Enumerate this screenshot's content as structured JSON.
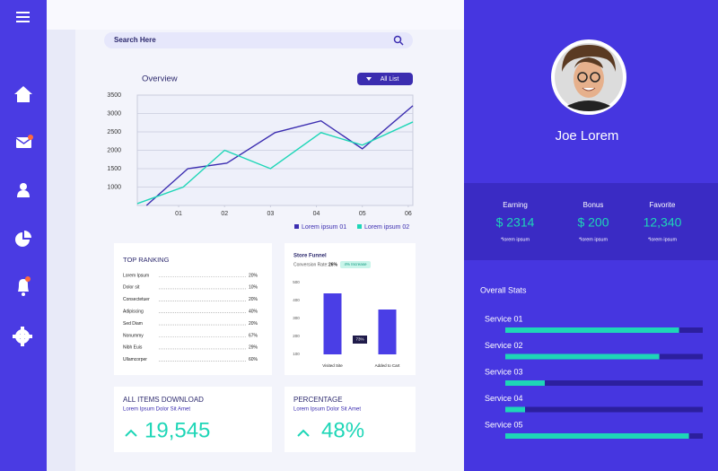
{
  "search": {
    "placeholder": "Search Here"
  },
  "overview": {
    "type": "line",
    "title": "Overview",
    "filter": "All List",
    "xlim": [
      0.1,
      6.1
    ],
    "xticks": [
      {
        "value": 1,
        "label": "01"
      },
      {
        "value": 2,
        "label": "02"
      },
      {
        "value": 3,
        "label": "03"
      },
      {
        "value": 4,
        "label": "04"
      },
      {
        "value": 5,
        "label": "05"
      },
      {
        "value": 6,
        "label": "06"
      }
    ],
    "ylim": [
      500,
      3500
    ],
    "yticks": [
      1000,
      1500,
      2000,
      2500,
      3000,
      3500
    ],
    "grid": true,
    "series": [
      {
        "name": "Lorem ipsum 01",
        "color": "#3b2db0",
        "x": [
          0.3,
          1.2,
          2.05,
          3.1,
          4.1,
          5.0,
          6.1
        ],
        "values": [
          500,
          1500,
          1650,
          2480,
          2800,
          2040,
          3210
        ]
      },
      {
        "name": "Lorem ipsum 02",
        "color": "#1ed6b7",
        "x": [
          0.1,
          1.1,
          2.0,
          3.0,
          4.1,
          5.0,
          6.1
        ],
        "values": [
          550,
          1000,
          2000,
          1500,
          2480,
          2140,
          2770
        ]
      }
    ]
  },
  "top_ranking": {
    "title": "TOP RANKING",
    "rows": [
      [
        "Lorem Ipsum",
        "20%"
      ],
      [
        "Dolor sit",
        "10%"
      ],
      [
        "Consectetuer",
        "20%"
      ],
      [
        "Adipiscing",
        "40%"
      ],
      [
        "Sed Diam",
        "20%"
      ],
      [
        "Nonummy",
        "67%"
      ],
      [
        "Nibh Euis",
        "29%"
      ],
      [
        "Ullamcorper",
        "60%"
      ]
    ]
  },
  "store_funnel": {
    "type": "bar",
    "title": "Store Funnel",
    "conversion_label": "Conversion Rate:",
    "conversion_rate": "26%",
    "increase": "4% Increase",
    "categories": [
      "Visited Site",
      "Added to Cart"
    ],
    "values": [
      440,
      350
    ],
    "color": "#4a3ee6",
    "ylim": [
      100,
      500
    ],
    "yticks": [
      100,
      200,
      300,
      400,
      500
    ],
    "annotation": "73%"
  },
  "downloads": {
    "title": "ALL ITEMS DOWNLOAD",
    "subtitle": "Lorem Ipsum Dolor Sit Amet",
    "value": "19,545"
  },
  "percentage": {
    "title": "PERCENTAGE",
    "subtitle": "Lorem Ipsum Dolor Sit Amet",
    "value": "48%"
  },
  "profile": {
    "name": "Joe Lorem"
  },
  "stats": [
    {
      "label": "Earning",
      "value": "$ 2314",
      "note": "*lorem ipsum"
    },
    {
      "label": "Bonus",
      "value": "$ 200",
      "note": "*lorem ipsum"
    },
    {
      "label": "Favorite",
      "value": "12,340",
      "note": "*lorem ipsum"
    }
  ],
  "overall_stats": {
    "type": "bar",
    "title": "Overall Stats",
    "categories": [
      "Service 01",
      "Service 02",
      "Service 03",
      "Service 04",
      "Service 05"
    ],
    "values": [
      88,
      78,
      20,
      10,
      93
    ],
    "xlim": [
      0,
      100
    ],
    "color": "#1ed6b7"
  }
}
